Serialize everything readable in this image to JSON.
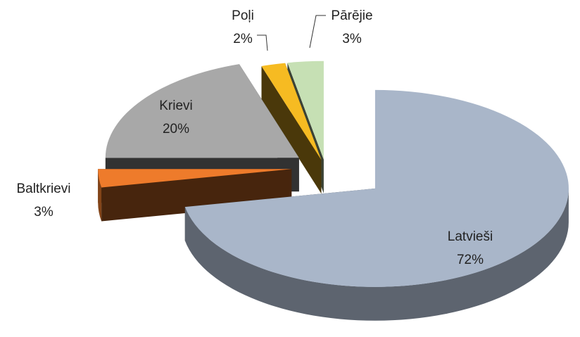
{
  "chart_data": {
    "type": "pie",
    "categories": [
      "Latvieši",
      "Baltkrievi",
      "Krievi",
      "Poļi",
      "Pārējie"
    ],
    "values": [
      72,
      3,
      20,
      2,
      3
    ],
    "value_labels": [
      "72%",
      "3%",
      "20%",
      "2%",
      "3%"
    ],
    "colors": [
      "#a9b6c9",
      "#ee7b2b",
      "#a8a8a8",
      "#f6bb22",
      "#c6e0b4"
    ]
  }
}
